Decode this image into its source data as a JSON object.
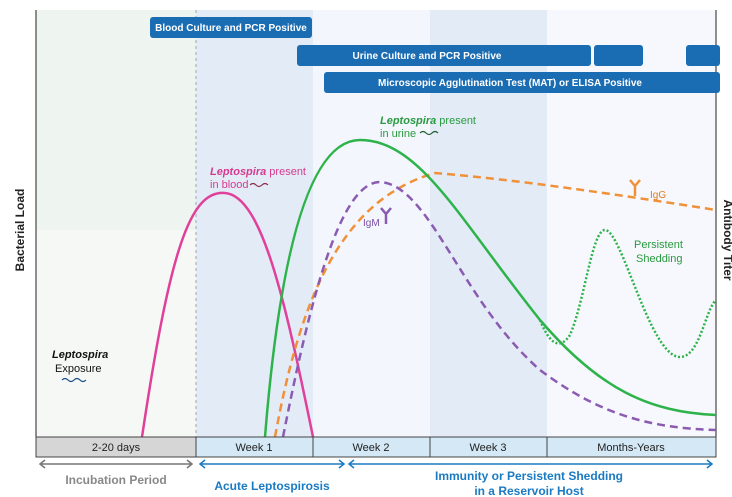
{
  "tests": {
    "blood": "Blood Culture and PCR Positive",
    "urine": "Urine Culture and PCR Positive",
    "mat": "Microscopic Agglutination Test (MAT) or ELISA Positive"
  },
  "annotations": {
    "blood": {
      "italic": "Leptospira",
      "rest": "present",
      "line2": "in blood"
    },
    "urine": {
      "italic": "Leptospira",
      "rest": "present",
      "line2": "in urine"
    },
    "exposure": {
      "italic": "Leptospira",
      "line2": "Exposure"
    },
    "igm": "IgM",
    "igg": "IgG",
    "shedding": {
      "line1": "Persistent",
      "line2": "Shedding"
    }
  },
  "axes": {
    "left": "Bacterial Load",
    "right": "Antibody Titer"
  },
  "timeline": [
    "2-20 days",
    "Week 1",
    "Week 2",
    "Week 3",
    "Months-Years"
  ],
  "phases": {
    "incubation": "Incubation Period",
    "acute": "Acute Leptospirosis",
    "immunity": {
      "line1": "Immunity or Persistent Shedding",
      "line2": "in a Reservoir Host"
    }
  }
}
